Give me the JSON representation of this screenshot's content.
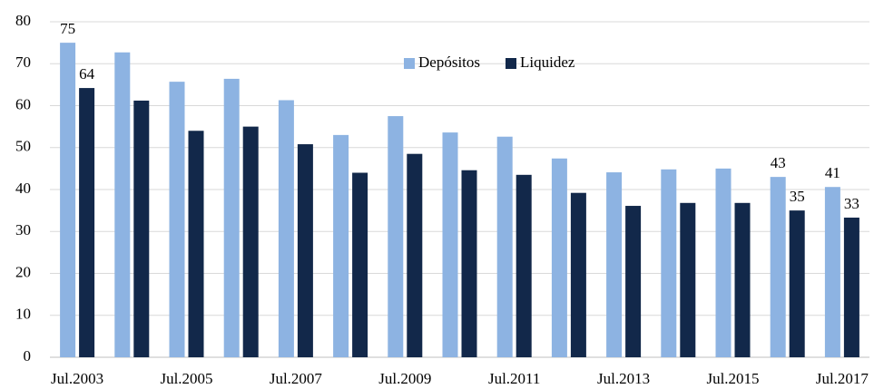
{
  "chart_data": {
    "type": "bar",
    "categories": [
      "Jul.2003",
      null,
      "Jul.2005",
      null,
      "Jul.2007",
      null,
      "Jul.2009",
      null,
      "Jul.2011",
      null,
      "Jul.2013",
      null,
      "Jul.2015",
      null,
      "Jul.2017"
    ],
    "series": [
      {
        "name": "Depósitos",
        "color": "#8db3e2",
        "values": [
          75,
          72.7,
          65.7,
          66.4,
          61.3,
          53,
          57.5,
          53.6,
          52.6,
          47.4,
          44.1,
          44.8,
          45,
          43,
          40.6
        ],
        "value_labels": [
          "75",
          null,
          null,
          null,
          null,
          null,
          null,
          null,
          null,
          null,
          null,
          null,
          null,
          "43",
          "41"
        ]
      },
      {
        "name": "Liquidez",
        "color": "#12284a",
        "values": [
          64.2,
          61.2,
          54,
          55,
          50.8,
          44,
          48.5,
          44.6,
          43.5,
          39.2,
          36.1,
          36.8,
          36.8,
          35,
          33.3
        ],
        "value_labels": [
          "64",
          null,
          null,
          null,
          null,
          null,
          null,
          null,
          null,
          null,
          null,
          null,
          null,
          "35",
          "33"
        ]
      }
    ],
    "ylim": [
      0,
      80
    ],
    "yticks": [
      0,
      10,
      20,
      30,
      40,
      50,
      60,
      70,
      80
    ],
    "grid": true
  }
}
